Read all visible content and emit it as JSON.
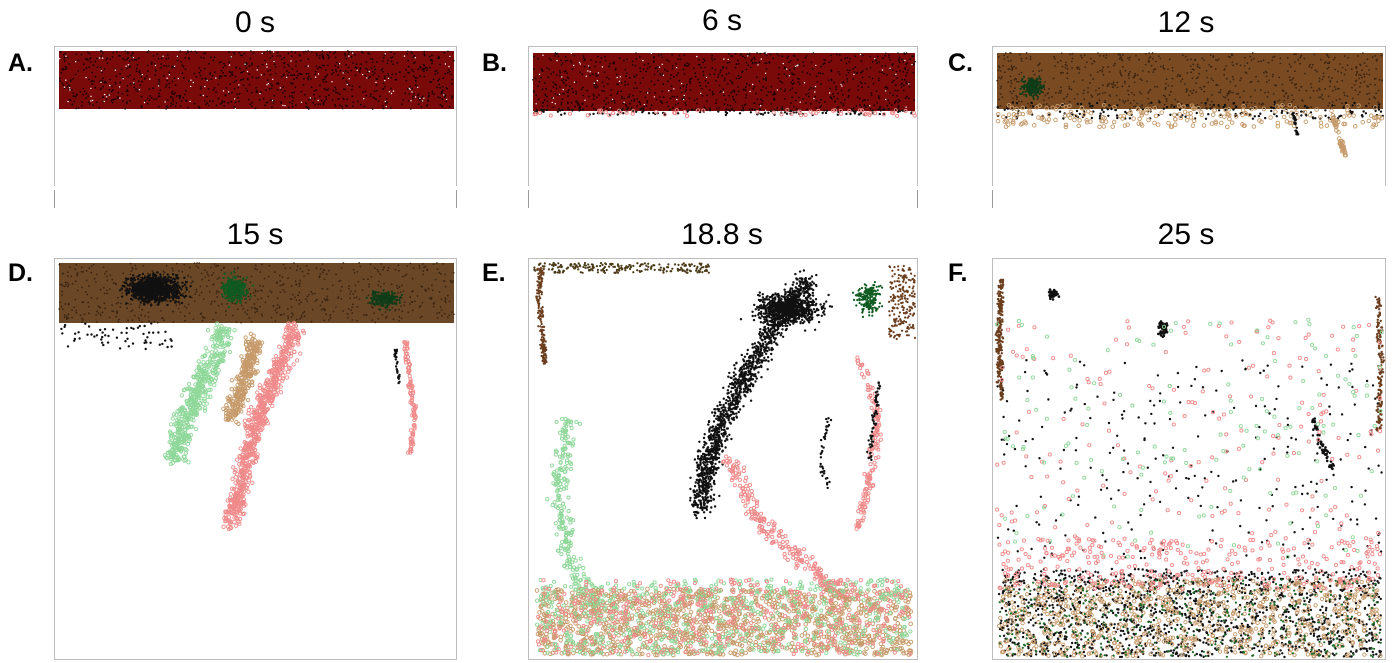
{
  "panels": [
    {
      "letter": "A.",
      "time": "0 s"
    },
    {
      "letter": "B.",
      "time": "6 s"
    },
    {
      "letter": "C.",
      "time": "12 s"
    },
    {
      "letter": "D.",
      "time": "15 s"
    },
    {
      "letter": "E.",
      "time": "18.8 s"
    },
    {
      "letter": "F.",
      "time": "25 s"
    }
  ],
  "colors": {
    "dark_red": "#7a0a0a",
    "black": "#111111",
    "green": "#1e7a2a",
    "brown": "#6b3e1e",
    "tan": "#c69a6a",
    "pink": "#f08a8a",
    "light_green": "#8fd89a"
  }
}
